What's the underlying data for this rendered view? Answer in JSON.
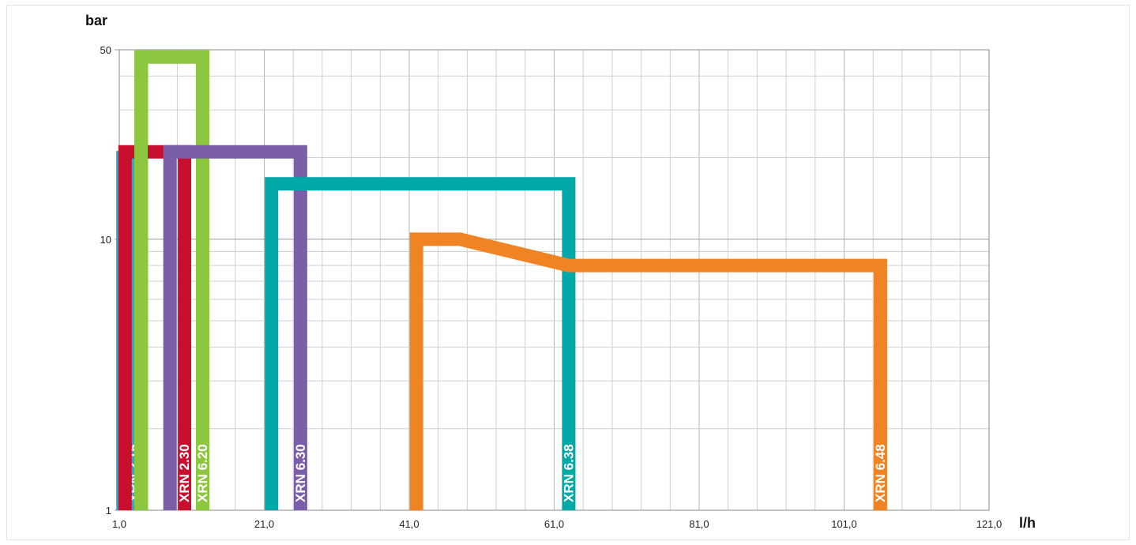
{
  "chart_data": {
    "type": "line",
    "title": "",
    "xlabel": "l/h",
    "ylabel": "bar",
    "xlim": [
      1,
      121
    ],
    "ylim": [
      1,
      50
    ],
    "y_scale": "log",
    "x_tick_labels": [
      "1,0",
      "21,0",
      "41,0",
      "61,0",
      "81,0",
      "101,0",
      "121,0"
    ],
    "y_tick_labels": [
      "1",
      "10",
      "50"
    ],
    "grid": true,
    "series": [
      {
        "name": "XRN 2.15",
        "color": "#1aaee5",
        "x": [
          1.5,
          1.5,
          3.0,
          3.0
        ],
        "y": [
          1,
          20,
          20,
          1
        ]
      },
      {
        "name": "XRN 2.30",
        "color": "#c8102e",
        "x": [
          1.8,
          1.8,
          10.0,
          10.0
        ],
        "y": [
          1,
          21,
          21,
          1
        ]
      },
      {
        "name": "XRN 6.20",
        "color": "#8dc63f",
        "x": [
          4.0,
          4.0,
          12.5,
          12.5
        ],
        "y": [
          1,
          47,
          47,
          1
        ]
      },
      {
        "name": "XRN 6.30",
        "color": "#7a5ea8",
        "x": [
          8.0,
          8.0,
          26.0,
          26.0
        ],
        "y": [
          1,
          21,
          21,
          1
        ]
      },
      {
        "name": "XRN 6.38",
        "color": "#00a9a7",
        "x": [
          22.0,
          22.0,
          63.0,
          63.0
        ],
        "y": [
          1,
          16,
          16,
          1
        ]
      },
      {
        "name": "XRN 6.48",
        "color": "#f08323",
        "x": [
          42.0,
          42.0,
          48.0,
          63.0,
          106.0,
          106.0
        ],
        "y": [
          1,
          10,
          10,
          8,
          8,
          1
        ]
      }
    ]
  }
}
